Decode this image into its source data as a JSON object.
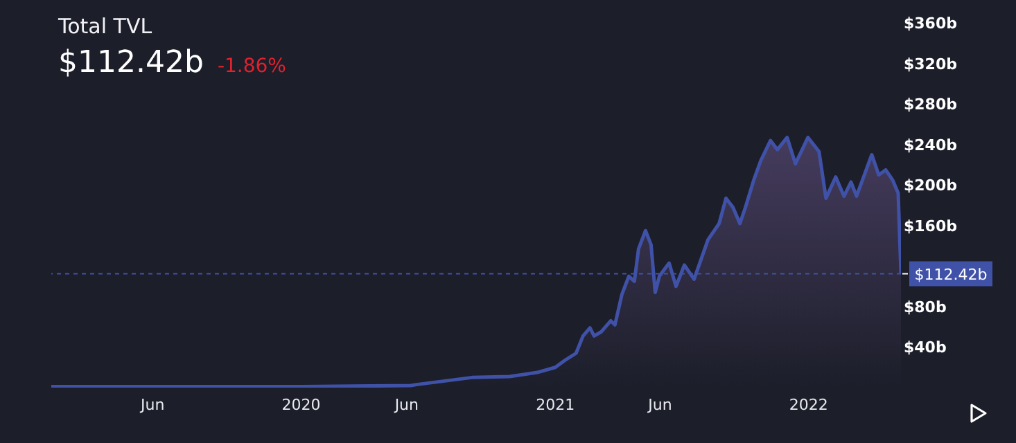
{
  "chart_data": {
    "type": "area",
    "title": "Total TVL",
    "subtitle": "$112.42b",
    "annotations": [
      "-1.86%"
    ],
    "x": [
      "2019-01-06",
      "2019-06-01",
      "2020-01-01",
      "2020-06-07",
      "2020-06-15",
      "2020-09-03",
      "2020-10-27",
      "2020-12-06",
      "2021-01-01",
      "2021-01-15",
      "2021-01-31",
      "2021-02-10",
      "2021-02-20",
      "2021-02-26",
      "2021-03-08",
      "2021-03-22",
      "2021-03-28",
      "2021-04-07",
      "2021-04-17",
      "2021-04-25",
      "2021-05-01",
      "2021-05-11",
      "2021-05-19",
      "2021-05-25",
      "2021-05-31",
      "2021-06-14",
      "2021-06-24",
      "2021-07-06",
      "2021-07-20",
      "2021-08-09",
      "2021-08-25",
      "2021-09-04",
      "2021-09-14",
      "2021-09-24",
      "2021-10-02",
      "2021-10-14",
      "2021-10-24",
      "2021-11-07",
      "2021-11-17",
      "2021-12-01",
      "2021-12-13",
      "2021-12-31",
      "2022-01-16",
      "2022-01-26",
      "2022-02-09",
      "2022-02-21",
      "2022-03-03",
      "2022-03-11",
      "2022-04-02",
      "2022-04-12",
      "2022-04-22",
      "2022-05-02",
      "2022-05-10",
      "2022-05-14"
    ],
    "series": [
      {
        "color": "#4052a8",
        "values": [
          1,
          1,
          1,
          2,
          3,
          10,
          11,
          15,
          20,
          27,
          34,
          51,
          59,
          51,
          55,
          66,
          62,
          92,
          110,
          105,
          137,
          155,
          141,
          94,
          110,
          123,
          100,
          121,
          107,
          146,
          162,
          187,
          178,
          162,
          178,
          205,
          224,
          244,
          235,
          247,
          221,
          247,
          233,
          187,
          208,
          189,
          203,
          189,
          230,
          210,
          215,
          205,
          192,
          112.42
        ]
      }
    ],
    "xlim": [
      "2019-01-06",
      "2022-05-14"
    ],
    "xticks": [
      {
        "value": "2019-06-01",
        "label": "Jun"
      },
      {
        "value": "2020-01-01",
        "label": "2020"
      },
      {
        "value": "2020-06-01",
        "label": "Jun"
      },
      {
        "value": "2021-01-01",
        "label": "2021"
      },
      {
        "value": "2021-06-01",
        "label": "Jun"
      },
      {
        "value": "2022-01-01",
        "label": "2022"
      }
    ],
    "ylim": [
      0,
      380
    ],
    "yticks": [
      {
        "value": 40,
        "label": "$40b"
      },
      {
        "value": 80,
        "label": "$80b"
      },
      {
        "value": 160,
        "label": "$160b"
      },
      {
        "value": 200,
        "label": "$200b"
      },
      {
        "value": 240,
        "label": "$240b"
      },
      {
        "value": 280,
        "label": "$280b"
      },
      {
        "value": 320,
        "label": "$320b"
      },
      {
        "value": 360,
        "label": "$360b"
      }
    ],
    "ref_lines": [
      {
        "axis": "y",
        "value": 112.42,
        "label": "$112.42b",
        "color": "#4052a8",
        "line_style": "dashed"
      }
    ]
  }
}
